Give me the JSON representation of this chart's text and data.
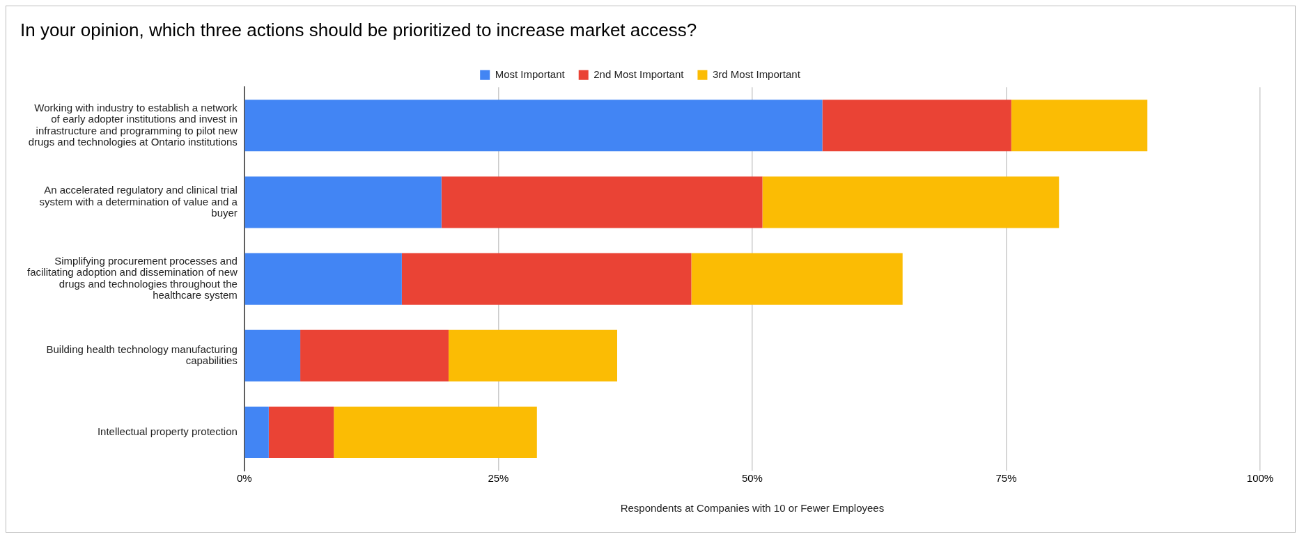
{
  "chart_data": {
    "type": "bar",
    "orientation": "horizontal",
    "stacked": true,
    "title": "In your opinion, which three actions should be prioritized to increase market access?",
    "xlabel": "Respondents at Companies with 10 or Fewer Employees",
    "categories": [
      "Working with industry to establish a network of early adopter institutions and invest in infrastructure and programming to pilot new drugs and technologies at Ontario institutions",
      "An accelerated regulatory and clinical trial system with a determination of value and a buyer",
      "Simplifying procurement processes and facilitating adoption and dissemination of new drugs and technologies throughout the healthcare system",
      "Building health technology manufacturing capabilities",
      "Intellectual property protection"
    ],
    "series": [
      {
        "name": "Most Important",
        "color": "#4285f4",
        "values": [
          56.9,
          19.4,
          15.5,
          5.5,
          2.4
        ]
      },
      {
        "name": "2nd Most Important",
        "color": "#ea4335",
        "values": [
          18.6,
          31.6,
          28.5,
          14.6,
          6.4
        ]
      },
      {
        "name": "3rd Most Important",
        "color": "#fbbc04",
        "values": [
          13.4,
          29.2,
          20.8,
          16.6,
          20.0
        ]
      }
    ],
    "xlim": [
      0,
      100
    ],
    "xticks": [
      {
        "value": 0,
        "label": "0%"
      },
      {
        "value": 25,
        "label": "25%"
      },
      {
        "value": 50,
        "label": "50%"
      },
      {
        "value": 75,
        "label": "75%"
      },
      {
        "value": 100,
        "label": "100%"
      }
    ],
    "grid": "x",
    "legend": "top"
  }
}
